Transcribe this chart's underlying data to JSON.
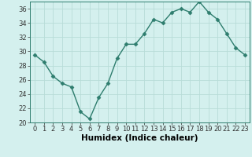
{
  "x": [
    0,
    1,
    2,
    3,
    4,
    5,
    6,
    7,
    8,
    9,
    10,
    11,
    12,
    13,
    14,
    15,
    16,
    17,
    18,
    19,
    20,
    21,
    22,
    23
  ],
  "y": [
    29.5,
    28.5,
    26.5,
    25.5,
    25.0,
    21.5,
    20.5,
    23.5,
    25.5,
    29.0,
    31.0,
    31.0,
    32.5,
    34.5,
    34.0,
    35.5,
    36.0,
    35.5,
    37.0,
    35.5,
    34.5,
    32.5,
    30.5,
    29.5
  ],
  "line_color": "#2e7d6e",
  "marker": "D",
  "markersize": 2.5,
  "linewidth": 1.0,
  "bg_color": "#d4f0ee",
  "grid_color": "#b8dcd8",
  "xlabel": "Humidex (Indice chaleur)",
  "xlim": [
    -0.5,
    23.5
  ],
  "ylim": [
    20,
    37
  ],
  "yticks": [
    20,
    22,
    24,
    26,
    28,
    30,
    32,
    34,
    36
  ],
  "xticks": [
    0,
    1,
    2,
    3,
    4,
    5,
    6,
    7,
    8,
    9,
    10,
    11,
    12,
    13,
    14,
    15,
    16,
    17,
    18,
    19,
    20,
    21,
    22,
    23
  ],
  "tick_fontsize": 6,
  "xlabel_fontsize": 7.5
}
